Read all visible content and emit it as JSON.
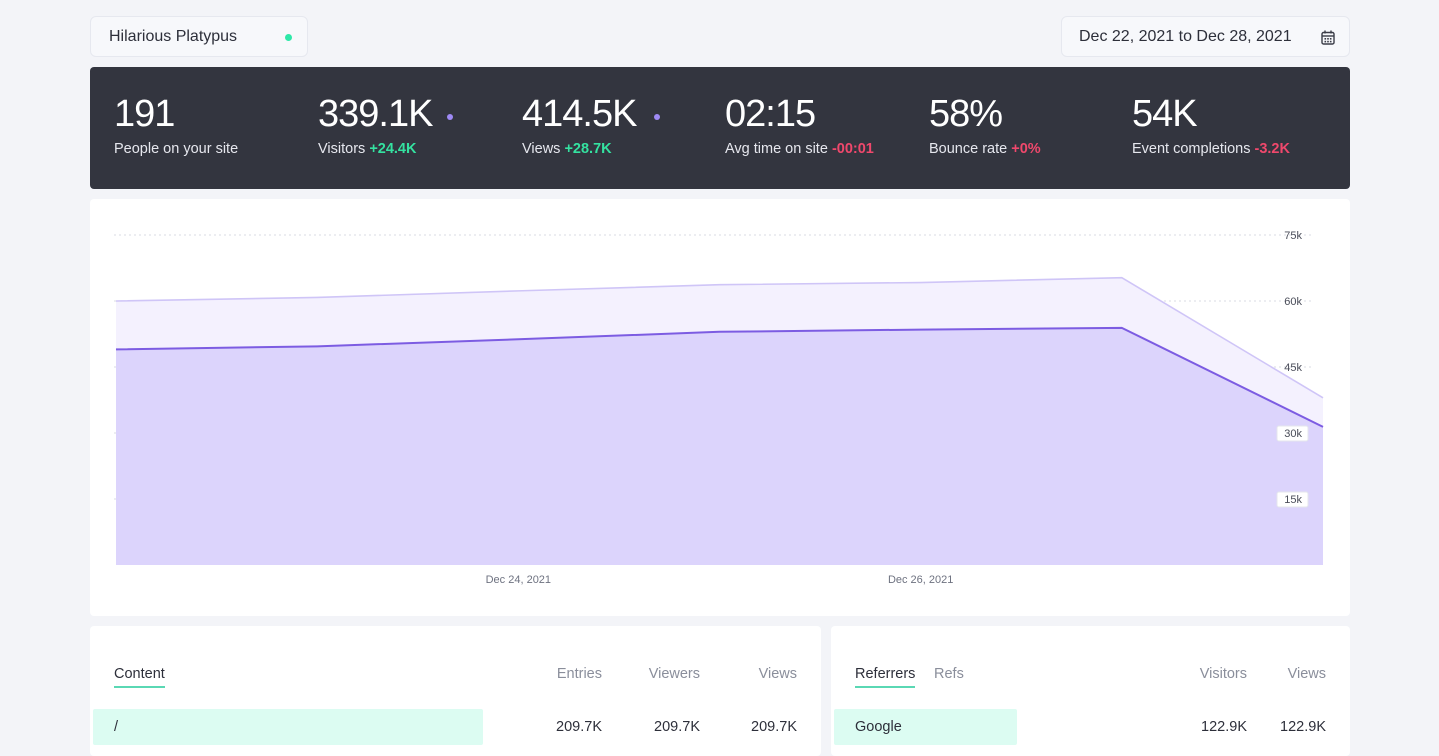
{
  "header": {
    "site_name": "Hilarious Platypus",
    "live_dot_color": "#2ee8a8",
    "date_range": "Dec 22, 2021 to Dec 28, 2021",
    "calendar_icon": "calendar-icon"
  },
  "stats": [
    {
      "value": "191",
      "label": "People on your site",
      "delta": ""
    },
    {
      "value": "339.1K",
      "label": "Visitors",
      "delta": "+24.4K",
      "trend": "up"
    },
    {
      "value": "414.5K",
      "label": "Views",
      "delta": "+28.7K",
      "trend": "up"
    },
    {
      "value": "02:15",
      "label": "Avg time on site",
      "delta": "-00:01",
      "trend": "down"
    },
    {
      "value": "58%",
      "label": "Bounce rate",
      "delta": "+0%",
      "trend": "down"
    },
    {
      "value": "54K",
      "label": "Event completions",
      "delta": "-3.2K",
      "trend": "down"
    }
  ],
  "chart_data": {
    "type": "area",
    "x": [
      "Dec 22, 2021",
      "Dec 23, 2021",
      "Dec 24, 2021",
      "Dec 25, 2021",
      "Dec 26, 2021",
      "Dec 27, 2021",
      "Dec 28, 2021"
    ],
    "x_tick_labels": [
      "Dec 24, 2021",
      "Dec 26, 2021"
    ],
    "y_tick_labels": [
      "75k",
      "60k",
      "45k",
      "30k",
      "15k"
    ],
    "ylim": [
      0,
      75000
    ],
    "grid": true,
    "series": [
      {
        "values": [
          60000,
          60800,
          62300,
          63700,
          64200,
          65300,
          38000
        ],
        "color": "#cfc5f7"
      },
      {
        "values": [
          49000,
          49700,
          51300,
          53000,
          53500,
          53900,
          31400
        ],
        "color": "#7c5ce2"
      }
    ]
  },
  "content_card": {
    "tabs": [
      {
        "label": "Content",
        "active": true
      }
    ],
    "columns": [
      "Entries",
      "Viewers",
      "Views"
    ],
    "rows": [
      {
        "label": "/",
        "values": [
          "209.7K",
          "209.7K",
          "209.7K"
        ]
      }
    ]
  },
  "referrers_card": {
    "tabs": [
      {
        "label": "Referrers",
        "active": true
      },
      {
        "label": "Refs",
        "active": false
      }
    ],
    "columns": [
      "Visitors",
      "Views"
    ],
    "rows": [
      {
        "label": "Google",
        "values": [
          "122.9K",
          "122.9K"
        ]
      }
    ]
  }
}
